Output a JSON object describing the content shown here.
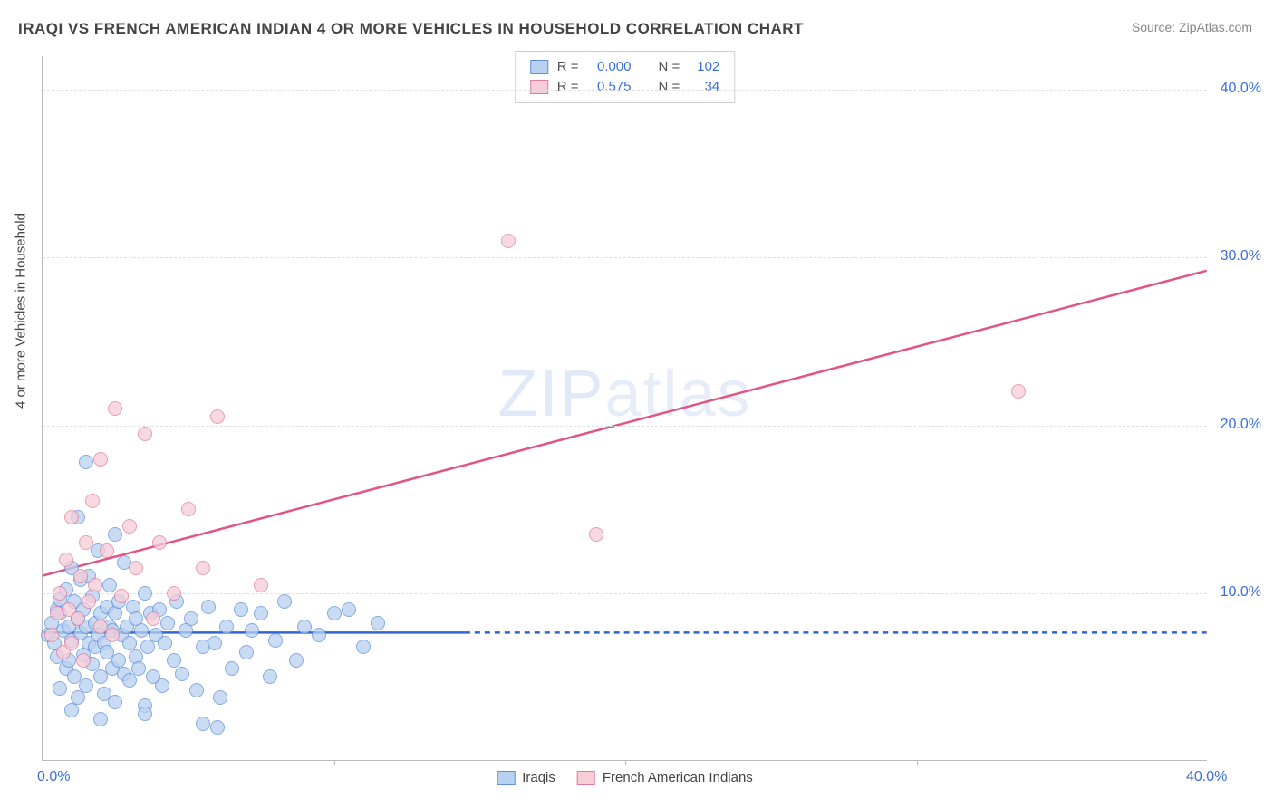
{
  "title": "IRAQI VS FRENCH AMERICAN INDIAN 4 OR MORE VEHICLES IN HOUSEHOLD CORRELATION CHART",
  "source": "Source: ZipAtlas.com",
  "y_axis_label": "4 or more Vehicles in Household",
  "watermark_bold": "ZIP",
  "watermark_thin": "atlas",
  "chart": {
    "type": "scatter",
    "background_color": "#ffffff",
    "grid_color": "#e0e0e0",
    "axis_color": "#bbbbbb",
    "inner_width": 1286,
    "inner_height": 778,
    "xlim": [
      0,
      40
    ],
    "ylim": [
      0,
      42
    ],
    "gridlines_y": [
      10,
      20,
      30,
      40
    ],
    "yticks_right": [
      {
        "v": 10,
        "label": "10.0%"
      },
      {
        "v": 20,
        "label": "20.0%"
      },
      {
        "v": 30,
        "label": "30.0%"
      },
      {
        "v": 40,
        "label": "40.0%"
      }
    ],
    "xticks": [
      {
        "v": 0,
        "label": "0.0%"
      },
      {
        "v": 40,
        "label": "40.0%"
      }
    ],
    "xtick_minor": [
      10,
      20,
      30
    ],
    "tick_color": "#3b6fd8"
  },
  "series": [
    {
      "key": "iraqis",
      "legend_label": "Iraqis",
      "fill": "#b9d1f1",
      "stroke": "#5e8fd8",
      "line_color": "#2f65d0",
      "r_value": "0.000",
      "n_value": "102",
      "regression": {
        "x1": 0,
        "y1": 7.6,
        "x2": 14.5,
        "y2": 7.6
      },
      "regression_dash": {
        "x1": 14.5,
        "y1": 7.6,
        "x2": 40,
        "y2": 7.6
      },
      "points": [
        [
          0.2,
          7.5
        ],
        [
          0.3,
          8.2
        ],
        [
          0.4,
          7.0
        ],
        [
          0.5,
          9.0
        ],
        [
          0.5,
          6.2
        ],
        [
          0.6,
          8.8
        ],
        [
          0.6,
          4.3
        ],
        [
          0.7,
          7.8
        ],
        [
          0.6,
          9.6
        ],
        [
          0.8,
          5.5
        ],
        [
          0.8,
          10.2
        ],
        [
          0.9,
          8.0
        ],
        [
          0.9,
          6.0
        ],
        [
          1.0,
          7.2
        ],
        [
          1.0,
          11.5
        ],
        [
          1.1,
          5.0
        ],
        [
          1.1,
          9.5
        ],
        [
          1.2,
          8.5
        ],
        [
          1.2,
          3.8
        ],
        [
          1.3,
          7.6
        ],
        [
          1.3,
          10.8
        ],
        [
          1.4,
          6.3
        ],
        [
          1.4,
          9.0
        ],
        [
          1.5,
          8.0
        ],
        [
          1.5,
          4.5
        ],
        [
          1.6,
          7.0
        ],
        [
          1.6,
          11.0
        ],
        [
          1.7,
          5.8
        ],
        [
          1.7,
          9.8
        ],
        [
          1.8,
          8.2
        ],
        [
          1.8,
          6.8
        ],
        [
          1.9,
          7.5
        ],
        [
          1.9,
          12.5
        ],
        [
          2.0,
          5.0
        ],
        [
          2.0,
          8.8
        ],
        [
          2.1,
          7.0
        ],
        [
          2.1,
          4.0
        ],
        [
          2.2,
          9.2
        ],
        [
          2.2,
          6.5
        ],
        [
          2.3,
          8.0
        ],
        [
          2.3,
          10.5
        ],
        [
          2.4,
          5.5
        ],
        [
          2.4,
          7.8
        ],
        [
          2.5,
          8.8
        ],
        [
          2.5,
          3.5
        ],
        [
          2.6,
          6.0
        ],
        [
          2.6,
          9.5
        ],
        [
          2.7,
          7.5
        ],
        [
          2.8,
          11.8
        ],
        [
          2.8,
          5.2
        ],
        [
          2.9,
          8.0
        ],
        [
          3.0,
          7.0
        ],
        [
          3.0,
          4.8
        ],
        [
          3.1,
          9.2
        ],
        [
          3.2,
          6.2
        ],
        [
          3.2,
          8.5
        ],
        [
          3.3,
          5.5
        ],
        [
          3.4,
          7.8
        ],
        [
          3.5,
          10.0
        ],
        [
          3.5,
          3.3
        ],
        [
          3.6,
          6.8
        ],
        [
          3.7,
          8.8
        ],
        [
          3.8,
          5.0
        ],
        [
          3.9,
          7.5
        ],
        [
          4.0,
          9.0
        ],
        [
          4.1,
          4.5
        ],
        [
          4.2,
          7.0
        ],
        [
          4.3,
          8.2
        ],
        [
          4.5,
          6.0
        ],
        [
          4.6,
          9.5
        ],
        [
          4.8,
          5.2
        ],
        [
          4.9,
          7.8
        ],
        [
          5.1,
          8.5
        ],
        [
          5.3,
          4.2
        ],
        [
          5.5,
          6.8
        ],
        [
          5.7,
          9.2
        ],
        [
          5.9,
          7.0
        ],
        [
          6.1,
          3.8
        ],
        [
          6.3,
          8.0
        ],
        [
          6.5,
          5.5
        ],
        [
          6.8,
          9.0
        ],
        [
          7.0,
          6.5
        ],
        [
          7.2,
          7.8
        ],
        [
          7.5,
          8.8
        ],
        [
          7.8,
          5.0
        ],
        [
          8.0,
          7.2
        ],
        [
          8.3,
          9.5
        ],
        [
          8.7,
          6.0
        ],
        [
          9.0,
          8.0
        ],
        [
          9.5,
          7.5
        ],
        [
          10.0,
          8.8
        ],
        [
          10.5,
          9.0
        ],
        [
          11.0,
          6.8
        ],
        [
          11.5,
          8.2
        ],
        [
          1.5,
          17.8
        ],
        [
          2.5,
          13.5
        ],
        [
          1.2,
          14.5
        ],
        [
          1.0,
          3.0
        ],
        [
          2.0,
          2.5
        ],
        [
          3.5,
          2.8
        ],
        [
          5.5,
          2.2
        ],
        [
          6.0,
          2.0
        ]
      ]
    },
    {
      "key": "french",
      "legend_label": "French American Indians",
      "fill": "#f6cdd8",
      "stroke": "#e07d9b",
      "line_color": "#e25583",
      "r_value": "0.575",
      "n_value": "34",
      "regression": {
        "x1": 0,
        "y1": 11.0,
        "x2": 40,
        "y2": 29.2
      },
      "points": [
        [
          0.3,
          7.5
        ],
        [
          0.5,
          8.8
        ],
        [
          0.6,
          10.0
        ],
        [
          0.7,
          6.5
        ],
        [
          0.8,
          12.0
        ],
        [
          0.9,
          9.0
        ],
        [
          1.0,
          7.0
        ],
        [
          1.0,
          14.5
        ],
        [
          1.2,
          8.5
        ],
        [
          1.3,
          11.0
        ],
        [
          1.4,
          6.0
        ],
        [
          1.5,
          13.0
        ],
        [
          1.6,
          9.5
        ],
        [
          1.7,
          15.5
        ],
        [
          1.8,
          10.5
        ],
        [
          2.0,
          8.0
        ],
        [
          2.0,
          18.0
        ],
        [
          2.2,
          12.5
        ],
        [
          2.4,
          7.5
        ],
        [
          2.5,
          21.0
        ],
        [
          2.7,
          9.8
        ],
        [
          3.0,
          14.0
        ],
        [
          3.2,
          11.5
        ],
        [
          3.5,
          19.5
        ],
        [
          3.8,
          8.5
        ],
        [
          4.0,
          13.0
        ],
        [
          4.5,
          10.0
        ],
        [
          5.0,
          15.0
        ],
        [
          5.5,
          11.5
        ],
        [
          6.0,
          20.5
        ],
        [
          7.5,
          10.5
        ],
        [
          16.0,
          31.0
        ],
        [
          19.0,
          13.5
        ],
        [
          33.5,
          22.0
        ]
      ]
    }
  ],
  "point_size": 16
}
